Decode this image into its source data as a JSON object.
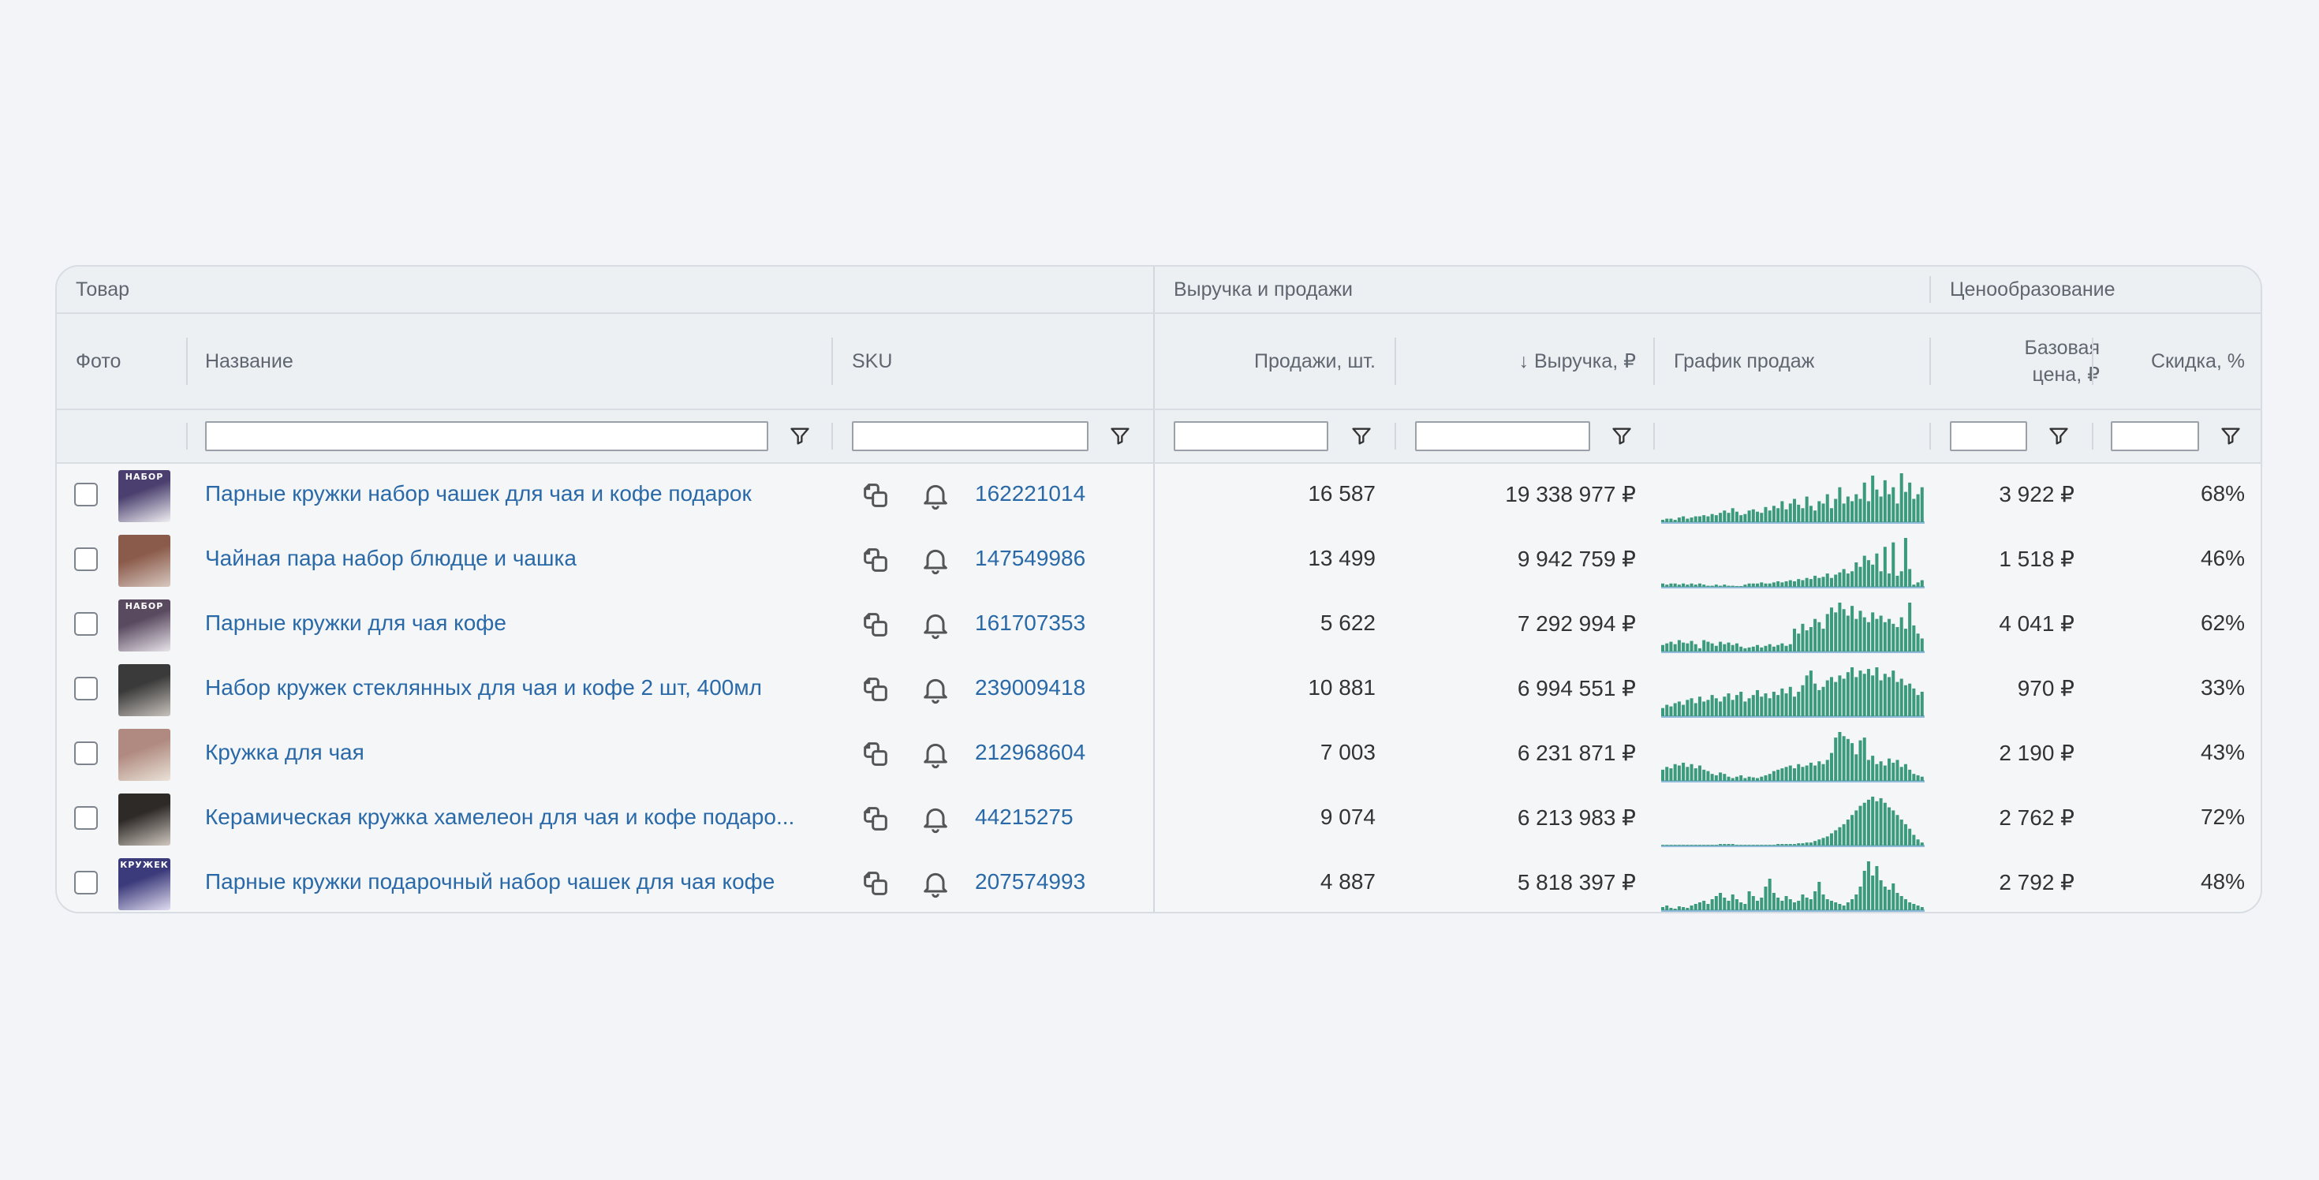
{
  "groups": {
    "product": "Товар",
    "revenue": "Выручка и продажи",
    "pricing": "Ценообразование"
  },
  "columns": {
    "photo": "Фото",
    "name": "Название",
    "sku": "SKU",
    "sales": "Продажи, шт.",
    "revenue": "↓ Выручка, ₽",
    "chart": "График продаж",
    "base_price_1": "Базовая",
    "base_price_2": "цена, ₽",
    "discount": "Скидка, %"
  },
  "colors": {
    "link": "#2a69a8",
    "bar": "#3c9a7c",
    "bar_low": "#8fb9d8"
  },
  "rows": [
    {
      "name": "Парные кружки набор чашек для чая и кофе подарок",
      "sku": "162221014",
      "sales": "16 587",
      "revenue": "19 338 977 ₽",
      "price": "3 922 ₽",
      "discount": "68%",
      "thumb_text": "НАБОР",
      "thumb_colors": [
        "#4a3f6e",
        "#f0eef2"
      ],
      "bars": [
        2,
        3,
        3,
        2,
        4,
        5,
        3,
        4,
        5,
        5,
        6,
        5,
        7,
        6,
        8,
        10,
        8,
        12,
        9,
        6,
        7,
        10,
        11,
        9,
        8,
        13,
        10,
        14,
        12,
        18,
        11,
        16,
        20,
        15,
        12,
        22,
        14,
        10,
        18,
        16,
        24,
        12,
        20,
        30,
        16,
        22,
        18,
        24,
        20,
        34,
        18,
        40,
        28,
        22,
        36,
        24,
        30,
        16,
        42,
        26,
        34,
        20,
        24,
        30
      ]
    },
    {
      "name": "Чайная пара набор блюдце и чашка",
      "sku": "147549986",
      "sales": "13 499",
      "revenue": "9 942 759 ₽",
      "price": "1 518 ₽",
      "discount": "46%",
      "thumb_text": "",
      "thumb_colors": [
        "#8a5a4a",
        "#d8c8c0"
      ],
      "bars": [
        3,
        2,
        3,
        3,
        2,
        3,
        2,
        3,
        2,
        3,
        2,
        1,
        1,
        2,
        1,
        2,
        1,
        1,
        0,
        0,
        2,
        3,
        3,
        3,
        4,
        3,
        3,
        4,
        5,
        4,
        5,
        6,
        5,
        7,
        6,
        8,
        7,
        10,
        8,
        9,
        12,
        8,
        11,
        13,
        16,
        12,
        14,
        22,
        18,
        28,
        24,
        20,
        30,
        14,
        36,
        12,
        40,
        10,
        14,
        44,
        16,
        2,
        4,
        6
      ]
    },
    {
      "name": "Парные кружки для чая кофе",
      "sku": "161707353",
      "sales": "5 622",
      "revenue": "7 292 994 ₽",
      "price": "4 041 ₽",
      "discount": "62%",
      "thumb_text": "НАБОР",
      "thumb_colors": [
        "#5a4a60",
        "#e8e4ea"
      ],
      "bars": [
        8,
        10,
        12,
        9,
        14,
        11,
        10,
        13,
        9,
        4,
        14,
        12,
        10,
        7,
        12,
        9,
        11,
        8,
        10,
        6,
        4,
        5,
        6,
        8,
        5,
        7,
        9,
        6,
        8,
        10,
        7,
        9,
        28,
        22,
        34,
        26,
        30,
        40,
        36,
        28,
        46,
        54,
        48,
        60,
        52,
        44,
        56,
        40,
        50,
        42,
        36,
        48,
        40,
        44,
        36,
        40,
        34,
        30,
        42,
        28,
        60,
        32,
        22,
        16
      ]
    },
    {
      "name": "Набор кружек стеклянных для чая и кофе 2 шт, 400мл",
      "sku": "239009418",
      "sales": "10 881",
      "revenue": "6 994 551 ₽",
      "price": "970 ₽",
      "discount": "33%",
      "thumb_text": "",
      "thumb_colors": [
        "#3a3a3a",
        "#c8c2bc"
      ],
      "bars": [
        10,
        14,
        12,
        16,
        18,
        14,
        20,
        22,
        16,
        24,
        18,
        20,
        26,
        22,
        18,
        24,
        28,
        20,
        26,
        30,
        18,
        22,
        26,
        32,
        24,
        28,
        22,
        30,
        26,
        34,
        28,
        36,
        24,
        30,
        38,
        50,
        56,
        40,
        32,
        36,
        44,
        48,
        42,
        50,
        46,
        54,
        60,
        48,
        56,
        52,
        58,
        50,
        60,
        44,
        52,
        48,
        56,
        42,
        46,
        38,
        40,
        34,
        26,
        30
      ]
    },
    {
      "name": "Кружка для чая",
      "sku": "212968604",
      "sales": "7 003",
      "revenue": "6 231 871 ₽",
      "price": "2 190 ₽",
      "discount": "43%",
      "thumb_text": "",
      "thumb_colors": [
        "#b08a80",
        "#eae2d8"
      ],
      "bars": [
        16,
        20,
        18,
        24,
        22,
        26,
        20,
        24,
        18,
        22,
        16,
        14,
        10,
        8,
        12,
        10,
        6,
        4,
        6,
        8,
        4,
        6,
        5,
        4,
        6,
        8,
        10,
        14,
        16,
        18,
        20,
        22,
        18,
        24,
        20,
        22,
        26,
        22,
        28,
        24,
        30,
        40,
        62,
        70,
        64,
        60,
        54,
        38,
        58,
        62,
        30,
        36,
        24,
        28,
        22,
        32,
        26,
        30,
        20,
        24,
        16,
        10,
        8,
        6
      ]
    },
    {
      "name": "Керамическая кружка хамелеон для чая и кофе подарок",
      "name_display": "Керамическая кружка хамелеон для чая и кофе подаро...",
      "sku": "44215275",
      "sales": "9 074",
      "revenue": "6 213 983 ₽",
      "price": "2 762 ₽",
      "discount": "72%",
      "thumb_text": "",
      "thumb_colors": [
        "#2e2a28",
        "#d0c8c0"
      ],
      "bars": [
        1,
        1,
        1,
        1,
        1,
        1,
        1,
        1,
        1,
        1,
        1,
        1,
        1,
        1,
        2,
        2,
        2,
        2,
        1,
        1,
        1,
        1,
        1,
        1,
        1,
        1,
        1,
        1,
        2,
        2,
        2,
        2,
        2,
        3,
        3,
        4,
        4,
        6,
        8,
        10,
        12,
        16,
        20,
        24,
        28,
        34,
        40,
        46,
        52,
        56,
        60,
        64,
        58,
        62,
        56,
        50,
        46,
        40,
        34,
        28,
        22,
        14,
        8,
        4
      ]
    },
    {
      "name": "Парные кружки подарочный набор чашек для чая кофе",
      "sku": "207574993",
      "sales": "4 887",
      "revenue": "5 818 397 ₽",
      "price": "2 792 ₽",
      "discount": "48%",
      "thumb_text": "КРУЖЕК",
      "thumb_colors": [
        "#3b3a7a",
        "#e0dcf0"
      ],
      "bars": [
        4,
        6,
        3,
        2,
        5,
        4,
        3,
        6,
        8,
        10,
        12,
        8,
        14,
        18,
        22,
        16,
        12,
        20,
        14,
        10,
        8,
        24,
        18,
        12,
        16,
        30,
        40,
        22,
        16,
        12,
        18,
        14,
        10,
        12,
        20,
        16,
        14,
        24,
        36,
        20,
        14,
        12,
        10,
        8,
        6,
        10,
        14,
        20,
        30,
        50,
        62,
        44,
        56,
        38,
        30,
        26,
        34,
        22,
        18,
        14,
        10,
        8,
        6,
        4
      ]
    }
  ]
}
